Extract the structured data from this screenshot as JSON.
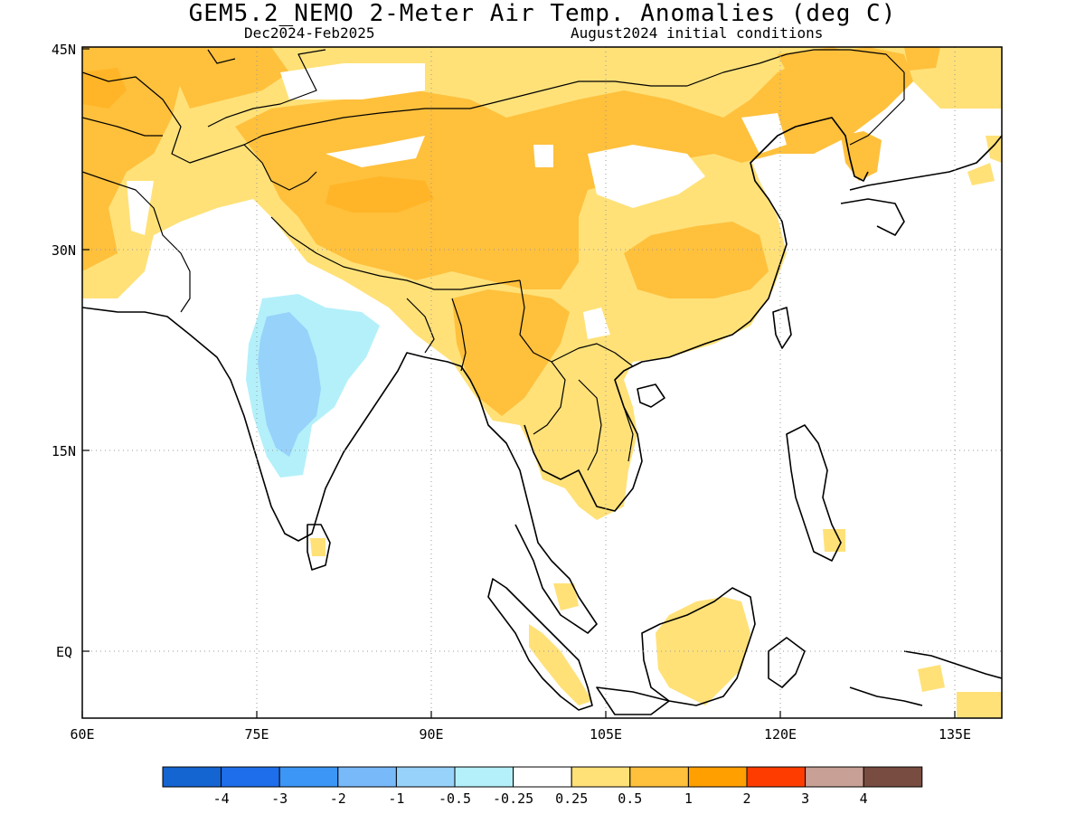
{
  "header": {
    "title": "GEM5.2_NEMO 2-Meter Air Temp. Anomalies (deg C)",
    "period": "Dec2024-Feb2025",
    "init": "August2024 initial conditions"
  },
  "map": {
    "lon_range": [
      60,
      139
    ],
    "lat_range": [
      -5.5,
      46.5
    ],
    "lon_ticks": [
      "60E",
      "75E",
      "90E",
      "105E",
      "120E",
      "135E"
    ],
    "lat_ticks": [
      "45N",
      "30N",
      "15N",
      "EQ"
    ],
    "grid": "dotted"
  },
  "colorbar": {
    "labels": [
      "-4",
      "-3",
      "-2",
      "-1",
      "-0.5",
      "-0.25",
      "0.25",
      "0.5",
      "1",
      "2",
      "3",
      "4"
    ],
    "colors": [
      "#1464d2",
      "#1e6eeb",
      "#3c96f5",
      "#78b9fa",
      "#96d2fa",
      "#b4f0fa",
      "#ffffff",
      "#ffe178",
      "#ffc03c",
      "#ffa000",
      "#ff3c00",
      "#c8a096",
      "#784c40"
    ]
  }
}
